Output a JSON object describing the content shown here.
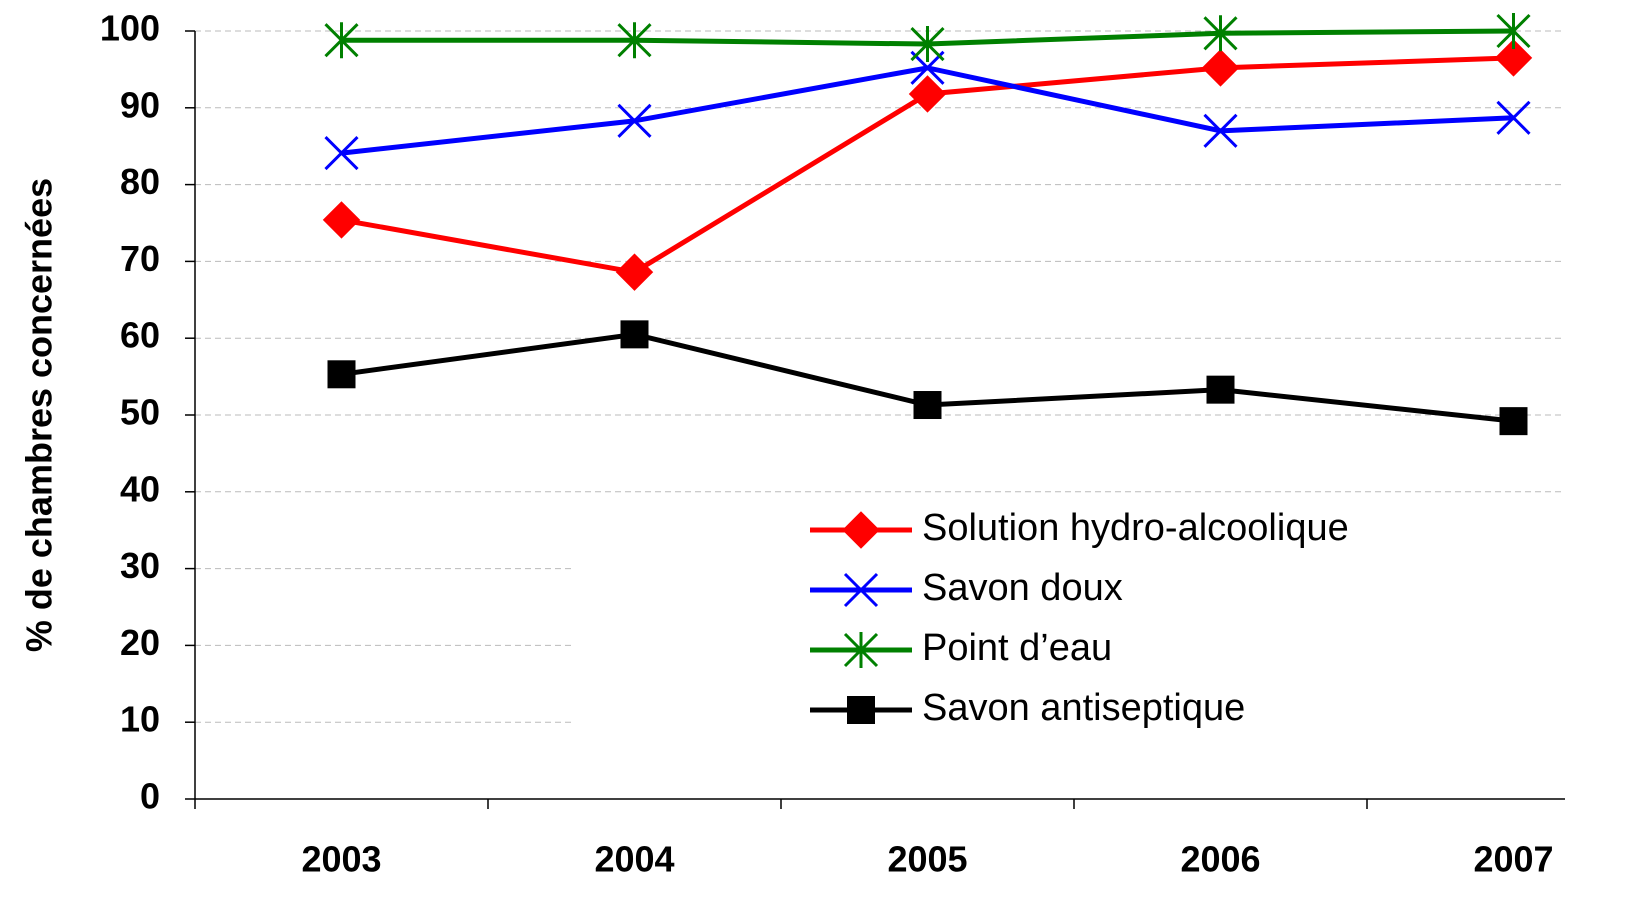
{
  "chart_data": {
    "type": "line",
    "y_label": "% de chambres concernées",
    "categories": [
      "2003",
      "2004",
      "2005",
      "2006",
      "2007"
    ],
    "series": [
      {
        "name": "Solution hydro-alcoolique",
        "color": "#ff0000",
        "marker": "diamond",
        "values": [
          75.4,
          68.6,
          91.8,
          95.2,
          96.5
        ]
      },
      {
        "name": "Savon doux",
        "color": "#0000ff",
        "marker": "x",
        "values": [
          84.1,
          88.3,
          95.2,
          87.0,
          88.7
        ]
      },
      {
        "name": "Point d’eau",
        "color": "#008000",
        "marker": "asterisk",
        "values": [
          98.8,
          98.8,
          98.3,
          99.7,
          100
        ]
      },
      {
        "name": "Savon antiseptique",
        "color": "#000000",
        "marker": "square",
        "values": [
          55.3,
          60.5,
          51.3,
          53.3,
          49.2
        ]
      }
    ],
    "ylim": [
      0,
      100
    ],
    "yticks": [
      0,
      10,
      20,
      30,
      40,
      50,
      60,
      70,
      80,
      90,
      100
    ],
    "grid": true,
    "legend": "lower right"
  }
}
